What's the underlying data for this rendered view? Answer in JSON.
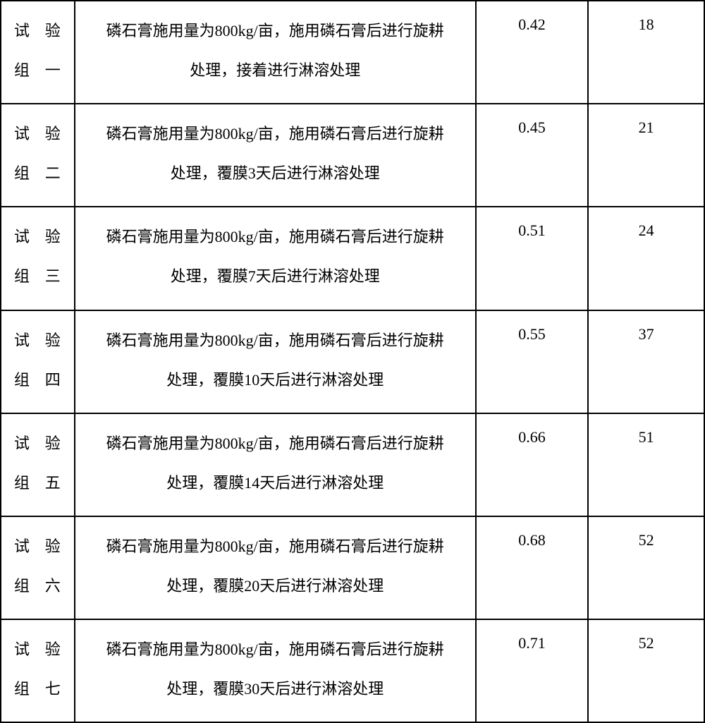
{
  "table": {
    "border_color": "#000000",
    "background_color": "#ffffff",
    "text_color": "#000000",
    "font_size_pt": 16,
    "columns": {
      "group": {
        "align": "justify"
      },
      "description": {
        "align": "center"
      },
      "value_a": {
        "align": "center"
      },
      "value_b": {
        "align": "center"
      }
    },
    "rows": [
      {
        "group_l1": "试验",
        "group_l2": "组一",
        "desc_l1": "磷石膏施用量为800kg/亩，施用磷石膏后进行旋耕",
        "desc_l2": "处理，接着进行淋溶处理",
        "val_a": "0.42",
        "val_b": "18"
      },
      {
        "group_l1": "试验",
        "group_l2": "组二",
        "desc_l1": "磷石膏施用量为800kg/亩，施用磷石膏后进行旋耕",
        "desc_l2": "处理，覆膜3天后进行淋溶处理",
        "val_a": "0.45",
        "val_b": "21"
      },
      {
        "group_l1": "试验",
        "group_l2": "组三",
        "desc_l1": "磷石膏施用量为800kg/亩，施用磷石膏后进行旋耕",
        "desc_l2": "处理，覆膜7天后进行淋溶处理",
        "val_a": "0.51",
        "val_b": "24"
      },
      {
        "group_l1": "试验",
        "group_l2": "组四",
        "desc_l1": "磷石膏施用量为800kg/亩，施用磷石膏后进行旋耕",
        "desc_l2": "处理，覆膜10天后进行淋溶处理",
        "val_a": "0.55",
        "val_b": "37"
      },
      {
        "group_l1": "试验",
        "group_l2": "组五",
        "desc_l1": "磷石膏施用量为800kg/亩，施用磷石膏后进行旋耕",
        "desc_l2": "处理，覆膜14天后进行淋溶处理",
        "val_a": "0.66",
        "val_b": "51"
      },
      {
        "group_l1": "试验",
        "group_l2": "组六",
        "desc_l1": "磷石膏施用量为800kg/亩，施用磷石膏后进行旋耕",
        "desc_l2": "处理，覆膜20天后进行淋溶处理",
        "val_a": "0.68",
        "val_b": "52"
      },
      {
        "group_l1": "试验",
        "group_l2": "组七",
        "desc_l1": "磷石膏施用量为800kg/亩，施用磷石膏后进行旋耕",
        "desc_l2": "处理，覆膜30天后进行淋溶处理",
        "val_a": "0.71",
        "val_b": "52"
      }
    ]
  }
}
